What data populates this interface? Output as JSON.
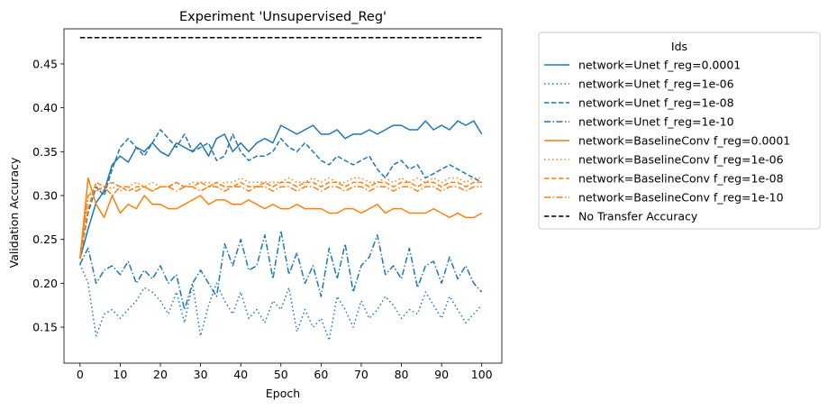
{
  "chart_data": {
    "type": "line",
    "title": "Experiment 'Unsupervised_Reg'",
    "xlabel": "Epoch",
    "ylabel": "Validation Accuracy",
    "xlim": [
      -4,
      105
    ],
    "ylim": [
      0.109,
      0.49
    ],
    "xticks": [
      0,
      10,
      20,
      30,
      40,
      50,
      60,
      70,
      80,
      90,
      100
    ],
    "yticks": [
      0.15,
      0.2,
      0.25,
      0.3,
      0.35,
      0.4,
      0.45
    ],
    "ytick_labels": [
      "0.15",
      "0.20",
      "0.25",
      "0.30",
      "0.35",
      "0.40",
      "0.45"
    ],
    "grid": false,
    "legend": {
      "title": "Ids",
      "placement": "outside-right"
    },
    "series": [
      {
        "name": "network=Unet f_reg=0.0001",
        "color": "#1f77b4",
        "dash": "solid",
        "x": [
          0,
          2,
          4,
          6,
          8,
          10,
          12,
          14,
          16,
          18,
          20,
          22,
          24,
          26,
          28,
          30,
          32,
          34,
          36,
          38,
          40,
          42,
          44,
          46,
          48,
          50,
          52,
          54,
          56,
          58,
          60,
          62,
          64,
          66,
          68,
          70,
          72,
          74,
          76,
          78,
          80,
          82,
          84,
          86,
          88,
          90,
          92,
          94,
          96,
          98,
          100
        ],
        "y": [
          0.228,
          0.262,
          0.292,
          0.305,
          0.335,
          0.345,
          0.338,
          0.355,
          0.35,
          0.36,
          0.35,
          0.345,
          0.36,
          0.355,
          0.35,
          0.36,
          0.345,
          0.365,
          0.37,
          0.35,
          0.36,
          0.35,
          0.36,
          0.365,
          0.36,
          0.38,
          0.375,
          0.37,
          0.375,
          0.38,
          0.37,
          0.37,
          0.375,
          0.365,
          0.37,
          0.37,
          0.375,
          0.37,
          0.375,
          0.38,
          0.38,
          0.375,
          0.375,
          0.385,
          0.375,
          0.38,
          0.375,
          0.385,
          0.38,
          0.385,
          0.37
        ]
      },
      {
        "name": "network=Unet f_reg=1e-06",
        "color": "#1f77b4",
        "dash": "dotted",
        "x": [
          0,
          2,
          4,
          6,
          8,
          10,
          12,
          14,
          16,
          18,
          20,
          22,
          24,
          26,
          28,
          30,
          32,
          34,
          36,
          38,
          40,
          42,
          44,
          46,
          48,
          50,
          52,
          54,
          56,
          58,
          60,
          62,
          64,
          66,
          68,
          70,
          72,
          74,
          76,
          78,
          80,
          82,
          84,
          86,
          88,
          90,
          92,
          94,
          96,
          98,
          100
        ],
        "y": [
          0.222,
          0.2,
          0.14,
          0.165,
          0.17,
          0.16,
          0.17,
          0.18,
          0.195,
          0.19,
          0.18,
          0.165,
          0.19,
          0.155,
          0.2,
          0.14,
          0.175,
          0.2,
          0.18,
          0.165,
          0.19,
          0.16,
          0.17,
          0.155,
          0.18,
          0.17,
          0.195,
          0.145,
          0.17,
          0.15,
          0.16,
          0.135,
          0.185,
          0.17,
          0.15,
          0.18,
          0.16,
          0.17,
          0.185,
          0.175,
          0.16,
          0.17,
          0.165,
          0.19,
          0.175,
          0.16,
          0.185,
          0.17,
          0.155,
          0.165,
          0.175
        ]
      },
      {
        "name": "network=Unet f_reg=1e-08",
        "color": "#1f77b4",
        "dash": "dashed",
        "x": [
          0,
          2,
          4,
          6,
          8,
          10,
          12,
          14,
          16,
          18,
          20,
          22,
          24,
          26,
          28,
          30,
          32,
          34,
          36,
          38,
          40,
          42,
          44,
          46,
          48,
          50,
          52,
          54,
          56,
          58,
          60,
          62,
          64,
          66,
          68,
          70,
          72,
          74,
          76,
          78,
          80,
          82,
          84,
          86,
          88,
          90,
          92,
          94,
          96,
          98,
          100
        ],
        "y": [
          0.228,
          0.28,
          0.31,
          0.3,
          0.33,
          0.355,
          0.365,
          0.355,
          0.345,
          0.36,
          0.375,
          0.365,
          0.355,
          0.37,
          0.35,
          0.355,
          0.36,
          0.34,
          0.345,
          0.37,
          0.35,
          0.34,
          0.345,
          0.345,
          0.35,
          0.365,
          0.355,
          0.35,
          0.36,
          0.35,
          0.34,
          0.335,
          0.345,
          0.34,
          0.335,
          0.34,
          0.345,
          0.33,
          0.32,
          0.335,
          0.34,
          0.33,
          0.335,
          0.32,
          0.325,
          0.33,
          0.335,
          0.33,
          0.325,
          0.32,
          0.315
        ]
      },
      {
        "name": "network=Unet f_reg=1e-10",
        "color": "#1f77b4",
        "dash": "dashdot",
        "x": [
          0,
          2,
          4,
          6,
          8,
          10,
          12,
          14,
          16,
          18,
          20,
          22,
          24,
          26,
          28,
          30,
          32,
          34,
          36,
          38,
          40,
          42,
          44,
          46,
          48,
          50,
          52,
          54,
          56,
          58,
          60,
          62,
          64,
          66,
          68,
          70,
          72,
          74,
          76,
          78,
          80,
          82,
          84,
          86,
          88,
          90,
          92,
          94,
          96,
          98,
          100
        ],
        "y": [
          0.222,
          0.24,
          0.2,
          0.215,
          0.22,
          0.21,
          0.225,
          0.2,
          0.215,
          0.205,
          0.22,
          0.2,
          0.21,
          0.17,
          0.2,
          0.215,
          0.2,
          0.185,
          0.245,
          0.22,
          0.25,
          0.215,
          0.22,
          0.255,
          0.205,
          0.26,
          0.21,
          0.235,
          0.2,
          0.22,
          0.185,
          0.24,
          0.205,
          0.245,
          0.19,
          0.22,
          0.23,
          0.255,
          0.21,
          0.22,
          0.205,
          0.24,
          0.195,
          0.22,
          0.225,
          0.2,
          0.23,
          0.205,
          0.22,
          0.2,
          0.19
        ]
      },
      {
        "name": "network=BaselineConv f_reg=0.0001",
        "color": "#ff7f0e",
        "dash": "solid",
        "x": [
          0,
          2,
          4,
          6,
          8,
          10,
          12,
          14,
          16,
          18,
          20,
          22,
          24,
          26,
          28,
          30,
          32,
          34,
          36,
          38,
          40,
          42,
          44,
          46,
          48,
          50,
          52,
          54,
          56,
          58,
          60,
          62,
          64,
          66,
          68,
          70,
          72,
          74,
          76,
          78,
          80,
          82,
          84,
          86,
          88,
          90,
          92,
          94,
          96,
          98,
          100
        ],
        "y": [
          0.228,
          0.32,
          0.29,
          0.275,
          0.3,
          0.28,
          0.29,
          0.285,
          0.3,
          0.29,
          0.29,
          0.285,
          0.285,
          0.29,
          0.295,
          0.3,
          0.29,
          0.295,
          0.295,
          0.29,
          0.29,
          0.295,
          0.29,
          0.285,
          0.29,
          0.285,
          0.285,
          0.29,
          0.285,
          0.285,
          0.285,
          0.28,
          0.28,
          0.285,
          0.285,
          0.28,
          0.285,
          0.29,
          0.28,
          0.285,
          0.285,
          0.28,
          0.28,
          0.28,
          0.285,
          0.28,
          0.275,
          0.28,
          0.275,
          0.275,
          0.28
        ]
      },
      {
        "name": "network=BaselineConv f_reg=1e-06",
        "color": "#ff7f0e",
        "dash": "dotted",
        "x": [
          0,
          2,
          4,
          6,
          8,
          10,
          12,
          14,
          16,
          18,
          20,
          22,
          24,
          26,
          28,
          30,
          32,
          34,
          36,
          38,
          40,
          42,
          44,
          46,
          48,
          50,
          52,
          54,
          56,
          58,
          60,
          62,
          64,
          66,
          68,
          70,
          72,
          74,
          76,
          78,
          80,
          82,
          84,
          86,
          88,
          90,
          92,
          94,
          96,
          98,
          100
        ],
        "y": [
          0.23,
          0.3,
          0.31,
          0.305,
          0.31,
          0.305,
          0.31,
          0.315,
          0.31,
          0.315,
          0.31,
          0.31,
          0.315,
          0.31,
          0.315,
          0.315,
          0.315,
          0.31,
          0.315,
          0.315,
          0.32,
          0.315,
          0.315,
          0.315,
          0.315,
          0.315,
          0.32,
          0.315,
          0.315,
          0.32,
          0.315,
          0.32,
          0.315,
          0.315,
          0.32,
          0.32,
          0.315,
          0.315,
          0.32,
          0.315,
          0.32,
          0.315,
          0.32,
          0.315,
          0.32,
          0.315,
          0.32,
          0.32,
          0.315,
          0.32,
          0.32
        ]
      },
      {
        "name": "network=BaselineConv f_reg=1e-08",
        "color": "#ff7f0e",
        "dash": "dashed",
        "x": [
          0,
          2,
          4,
          6,
          8,
          10,
          12,
          14,
          16,
          18,
          20,
          22,
          24,
          26,
          28,
          30,
          32,
          34,
          36,
          38,
          40,
          42,
          44,
          46,
          48,
          50,
          52,
          54,
          56,
          58,
          60,
          62,
          64,
          66,
          68,
          70,
          72,
          74,
          76,
          78,
          80,
          82,
          84,
          86,
          88,
          90,
          92,
          94,
          96,
          98,
          100
        ],
        "y": [
          0.228,
          0.285,
          0.315,
          0.31,
          0.315,
          0.31,
          0.305,
          0.31,
          0.31,
          0.305,
          0.31,
          0.31,
          0.315,
          0.31,
          0.31,
          0.315,
          0.31,
          0.315,
          0.31,
          0.31,
          0.315,
          0.31,
          0.31,
          0.315,
          0.31,
          0.315,
          0.315,
          0.31,
          0.315,
          0.315,
          0.31,
          0.315,
          0.315,
          0.31,
          0.315,
          0.315,
          0.31,
          0.315,
          0.315,
          0.31,
          0.315,
          0.315,
          0.31,
          0.315,
          0.315,
          0.31,
          0.315,
          0.315,
          0.31,
          0.315,
          0.315
        ]
      },
      {
        "name": "network=BaselineConv f_reg=1e-10",
        "color": "#ff7f0e",
        "dash": "dashdot",
        "x": [
          0,
          2,
          4,
          6,
          8,
          10,
          12,
          14,
          16,
          18,
          20,
          22,
          24,
          26,
          28,
          30,
          32,
          34,
          36,
          38,
          40,
          42,
          44,
          46,
          48,
          50,
          52,
          54,
          56,
          58,
          60,
          62,
          64,
          66,
          68,
          70,
          72,
          74,
          76,
          78,
          80,
          82,
          84,
          86,
          88,
          90,
          92,
          94,
          96,
          98,
          100
        ],
        "y": [
          0.228,
          0.3,
          0.305,
          0.31,
          0.3,
          0.31,
          0.31,
          0.305,
          0.31,
          0.305,
          0.31,
          0.31,
          0.305,
          0.31,
          0.31,
          0.305,
          0.31,
          0.31,
          0.305,
          0.31,
          0.31,
          0.305,
          0.31,
          0.31,
          0.305,
          0.31,
          0.31,
          0.305,
          0.31,
          0.31,
          0.305,
          0.31,
          0.31,
          0.305,
          0.31,
          0.31,
          0.305,
          0.31,
          0.31,
          0.305,
          0.31,
          0.31,
          0.305,
          0.31,
          0.31,
          0.305,
          0.31,
          0.31,
          0.305,
          0.31,
          0.31
        ]
      },
      {
        "name": "No Transfer Accuracy",
        "color": "#000000",
        "dash": "dashed",
        "x": [
          0,
          100
        ],
        "y": [
          0.48,
          0.48
        ]
      }
    ]
  }
}
